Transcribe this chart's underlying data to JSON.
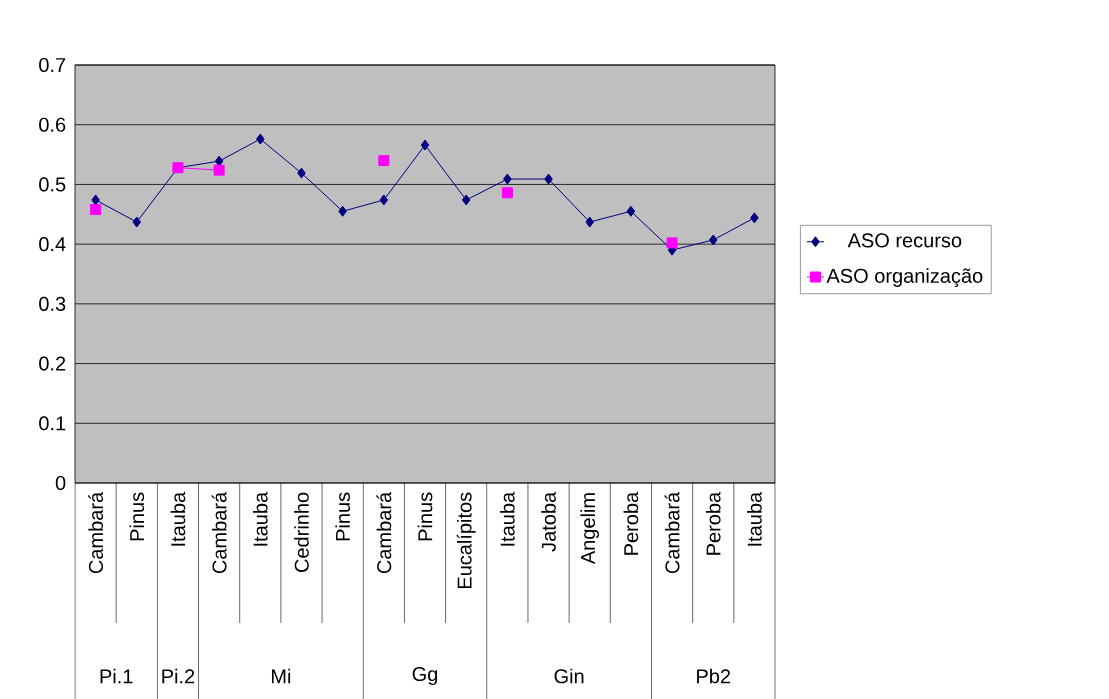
{
  "chart_data": {
    "type": "line",
    "categories": [
      "Cambará",
      "Pinus",
      "Itauba",
      "Cambará",
      "Itauba",
      "Cedrinho",
      "Pinus",
      "Cambará",
      "Pinus",
      "Eucalípitos",
      "Itauba",
      "Jatoba",
      "Angelim",
      "Peroba",
      "Cambará",
      "Peroba",
      "Itauba"
    ],
    "series": [
      {
        "name": "ASO recurso",
        "color": "#000080",
        "marker": "diamond",
        "values": [
          0.474,
          0.437,
          0.528,
          0.539,
          0.576,
          0.519,
          0.455,
          0.474,
          0.566,
          0.474,
          0.509,
          0.509,
          0.437,
          0.455,
          0.39,
          0.407,
          0.444
        ]
      },
      {
        "name": "ASO organização",
        "color": "#ff00ff",
        "marker": "square",
        "values": [
          0.458,
          null,
          0.528,
          0.524,
          null,
          null,
          null,
          0.54,
          null,
          null,
          0.486,
          null,
          null,
          null,
          0.402,
          null,
          null
        ]
      }
    ],
    "annotations": [
      "Pi.1",
      "Pi.2",
      "Mi",
      "Gg",
      "Gin",
      "Pb2"
    ],
    "ylim": [
      0,
      0.7
    ],
    "yticks": [
      0,
      0.1,
      0.2,
      0.3,
      0.4,
      0.5,
      0.6,
      0.7
    ],
    "grid": "y",
    "legend": "right"
  }
}
